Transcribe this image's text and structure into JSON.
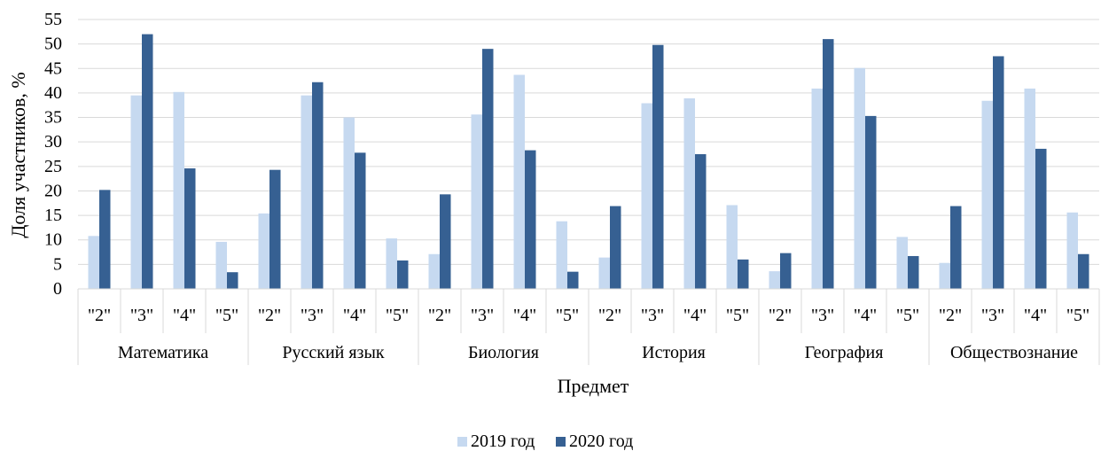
{
  "chart_data": {
    "type": "bar",
    "xlabel": "Предмет",
    "ylabel": "Доля участников, %",
    "ylim": [
      0,
      55
    ],
    "ytick_step": 5,
    "grid": true,
    "legend_position": "bottom",
    "grades": [
      "\"2\"",
      "\"3\"",
      "\"4\"",
      "\"5\""
    ],
    "groups": [
      "Математика",
      "Русский язык",
      "Биология",
      "История",
      "География",
      "Обществознание"
    ],
    "series": [
      {
        "name": "2019 год",
        "color": "#c6d9f0",
        "values": [
          10.8,
          39.5,
          40.2,
          9.6,
          15.4,
          39.5,
          35.0,
          10.3,
          7.1,
          35.6,
          43.7,
          13.8,
          6.4,
          37.9,
          38.9,
          17.1,
          3.6,
          40.9,
          45.1,
          10.6,
          5.3,
          38.4,
          40.9,
          15.6
        ]
      },
      {
        "name": "2020 год",
        "color": "#366092",
        "values": [
          20.2,
          52.0,
          24.6,
          3.4,
          24.3,
          42.2,
          27.8,
          5.8,
          19.3,
          49.0,
          28.3,
          3.5,
          16.9,
          49.8,
          27.5,
          6.0,
          7.3,
          51.0,
          35.3,
          6.7,
          16.9,
          47.5,
          28.6,
          7.1
        ]
      }
    ]
  }
}
